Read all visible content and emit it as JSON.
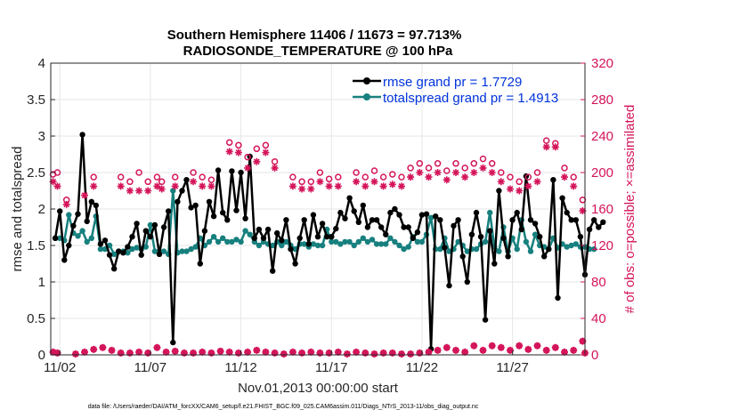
{
  "chart_data": {
    "type": "line",
    "title_line1": "Southern Hemisphere 11406 / 11673 = 97.713%",
    "title_line2": "RADIOSONDE_TEMPERATURE @ 100 hPa",
    "xlabel": "Nov.01,2013 00:00:00 start",
    "ylabel_left": "rmse and totalspread",
    "ylabel_right": "# of obs: o=possible; ×=assimilated",
    "footnote": "data file: /Users/raeder/DAI/ATM_forcXX/CAM6_setup/f.e21.FHIST_BGC.f09_025.CAM6assim.011/Diags_NTrS_2013-11/obs_diag_output.nc",
    "x_range_days": [
      0.75,
      30.25
    ],
    "ylim_left": [
      0,
      4
    ],
    "yticks_left": [
      "0",
      "0.5",
      "1",
      "1.5",
      "2",
      "2.5",
      "3",
      "3.5",
      "4"
    ],
    "ylim_right": [
      0,
      320
    ],
    "yticks_right": [
      "0",
      "40",
      "80",
      "120",
      "160",
      "200",
      "240",
      "280",
      "320"
    ],
    "xticks": [
      {
        "day": 1.25,
        "label": "11/02"
      },
      {
        "day": 6.25,
        "label": "11/07"
      },
      {
        "day": 11.25,
        "label": "11/12"
      },
      {
        "day": 16.25,
        "label": "11/17"
      },
      {
        "day": 21.25,
        "label": "11/22"
      },
      {
        "day": 26.25,
        "label": "11/27"
      }
    ],
    "legend": [
      {
        "label": "rmse grand pr = 1.7729",
        "color": "#000000"
      },
      {
        "label": "totalspread grand pr = 1.4913",
        "color": "#17807E"
      }
    ],
    "colors": {
      "rmse": "#000000",
      "spread": "#17807E",
      "obs": "#D4145A",
      "text_blue": "#0033DD",
      "grid": "#E6E6E6"
    },
    "rmse": [
      1.6,
      1.97,
      1.3,
      1.5,
      1.77,
      1.93,
      3.02,
      1.83,
      2.1,
      2.05,
      1.52,
      1.57,
      1.37,
      1.18,
      1.42,
      1.4,
      1.48,
      1.62,
      1.8,
      1.37,
      1.7,
      1.62,
      1.78,
      1.38,
      1.75,
      1.97,
      0.17,
      2.1,
      2.25,
      2.4,
      2.02,
      2.05,
      1.25,
      1.7,
      2.1,
      1.9,
      2.53,
      1.95,
      1.85,
      2.52,
      1.98,
      2.5,
      1.87,
      2.72,
      1.6,
      1.72,
      1.6,
      1.72,
      1.15,
      1.67,
      1.57,
      1.85,
      1.45,
      1.25,
      1.6,
      1.85,
      1.52,
      1.92,
      1.62,
      1.8,
      1.62,
      1.62,
      1.73,
      1.95,
      1.87,
      2.15,
      1.97,
      1.82,
      2.05,
      1.75,
      1.85,
      1.85,
      1.75,
      1.65,
      1.95,
      2.0,
      1.92,
      1.75,
      1.75,
      1.6,
      1.68,
      1.92,
      1.93,
      0.08,
      1.9,
      1.85,
      1.47,
      0.95,
      1.77,
      1.85,
      1.35,
      1.0,
      1.65,
      1.95,
      1.62,
      0.48,
      1.7,
      1.25,
      2.25,
      1.6,
      1.35,
      1.85,
      1.95,
      1.72,
      2.45,
      1.85,
      1.8,
      1.62,
      1.35,
      1.45,
      2.4,
      0.78,
      2.15,
      1.95,
      1.85,
      1.85,
      1.62,
      1.1,
      1.72,
      1.85,
      1.75,
      1.82
    ],
    "spread": [
      1.6,
      1.6,
      1.57,
      1.92,
      1.67,
      1.63,
      1.7,
      1.55,
      1.6,
      1.9,
      1.45,
      1.45,
      1.5,
      1.38,
      1.42,
      1.42,
      1.4,
      1.45,
      1.47,
      1.45,
      1.48,
      1.78,
      1.42,
      1.42,
      1.42,
      1.38,
      2.25,
      1.4,
      1.42,
      1.42,
      1.45,
      1.48,
      1.6,
      1.5,
      1.55,
      1.62,
      1.55,
      1.6,
      1.55,
      1.55,
      1.58,
      1.55,
      1.7,
      1.65,
      1.55,
      1.5,
      1.55,
      1.52,
      1.5,
      1.55,
      1.5,
      1.55,
      1.5,
      1.45,
      1.52,
      1.52,
      1.48,
      1.52,
      1.5,
      1.5,
      1.72,
      1.55,
      1.55,
      1.52,
      1.55,
      1.55,
      1.5,
      1.55,
      1.6,
      1.55,
      1.58,
      1.52,
      1.52,
      1.52,
      1.6,
      1.55,
      1.5,
      1.45,
      1.48,
      1.62,
      1.55,
      1.55,
      1.65,
      1.88,
      1.45,
      1.45,
      1.6,
      1.42,
      1.45,
      1.55,
      1.5,
      1.42,
      1.45,
      1.45,
      1.52,
      1.55,
      1.95,
      1.48,
      1.42,
      1.75,
      1.42,
      1.6,
      1.45,
      1.85,
      1.55,
      1.42,
      1.65,
      1.5,
      1.48,
      1.45,
      1.6,
      1.47,
      1.52,
      1.48,
      1.5,
      1.52,
      1.48,
      1.48,
      1.45,
      1.45
    ],
    "obs_possible": [
      [
        0.88,
        198
      ],
      [
        1.12,
        200
      ],
      [
        1.62,
        170
      ],
      [
        3.12,
        195
      ],
      [
        4.62,
        195
      ],
      [
        5.12,
        190
      ],
      [
        5.62,
        200
      ],
      [
        6.12,
        190
      ],
      [
        6.62,
        195
      ],
      [
        6.88,
        190
      ],
      [
        7.62,
        195
      ],
      [
        8.62,
        200
      ],
      [
        9.12,
        195
      ],
      [
        9.62,
        192
      ],
      [
        10.62,
        233
      ],
      [
        11.12,
        230
      ],
      [
        11.62,
        217
      ],
      [
        12.12,
        226
      ],
      [
        12.62,
        230
      ],
      [
        13.12,
        212
      ],
      [
        14.12,
        195
      ],
      [
        14.62,
        190
      ],
      [
        15.12,
        190
      ],
      [
        15.62,
        200
      ],
      [
        16.12,
        193
      ],
      [
        16.62,
        195
      ],
      [
        17.62,
        200
      ],
      [
        18.12,
        195
      ],
      [
        18.62,
        202
      ],
      [
        19.12,
        195
      ],
      [
        19.62,
        198
      ],
      [
        20.12,
        195
      ],
      [
        20.62,
        205
      ],
      [
        21.12,
        210
      ],
      [
        21.62,
        205
      ],
      [
        22.12,
        210
      ],
      [
        22.62,
        202
      ],
      [
        23.12,
        210
      ],
      [
        23.62,
        205
      ],
      [
        24.12,
        210
      ],
      [
        24.62,
        215
      ],
      [
        25.12,
        210
      ],
      [
        25.62,
        200
      ],
      [
        26.12,
        195
      ],
      [
        26.62,
        190
      ],
      [
        27.12,
        195
      ],
      [
        27.62,
        200
      ],
      [
        28.12,
        235
      ],
      [
        28.62,
        232
      ],
      [
        29.12,
        205
      ],
      [
        29.62,
        195
      ],
      [
        30.12,
        170
      ]
    ],
    "obs_assimilated": [
      [
        0.88,
        190
      ],
      [
        1.12,
        185
      ],
      [
        1.62,
        165
      ],
      [
        2.62,
        175
      ],
      [
        3.12,
        185
      ],
      [
        4.62,
        185
      ],
      [
        5.12,
        180
      ],
      [
        5.62,
        180
      ],
      [
        6.12,
        180
      ],
      [
        6.62,
        185
      ],
      [
        6.88,
        182
      ],
      [
        7.62,
        185
      ],
      [
        8.62,
        190
      ],
      [
        9.12,
        185
      ],
      [
        9.62,
        185
      ],
      [
        10.62,
        223
      ],
      [
        11.12,
        222
      ],
      [
        11.62,
        205
      ],
      [
        12.12,
        212
      ],
      [
        12.62,
        222
      ],
      [
        13.12,
        205
      ],
      [
        14.12,
        185
      ],
      [
        14.62,
        182
      ],
      [
        15.12,
        182
      ],
      [
        15.62,
        190
      ],
      [
        16.12,
        185
      ],
      [
        16.62,
        185
      ],
      [
        17.62,
        190
      ],
      [
        18.12,
        185
      ],
      [
        18.62,
        190
      ],
      [
        19.12,
        185
      ],
      [
        19.62,
        187
      ],
      [
        20.12,
        185
      ],
      [
        20.62,
        195
      ],
      [
        21.12,
        200
      ],
      [
        21.62,
        195
      ],
      [
        22.12,
        200
      ],
      [
        22.62,
        192
      ],
      [
        23.12,
        200
      ],
      [
        23.62,
        195
      ],
      [
        24.12,
        200
      ],
      [
        24.62,
        205
      ],
      [
        25.12,
        200
      ],
      [
        25.62,
        190
      ],
      [
        26.12,
        182
      ],
      [
        26.62,
        180
      ],
      [
        27.12,
        185
      ],
      [
        27.62,
        190
      ],
      [
        28.12,
        228
      ],
      [
        28.62,
        228
      ],
      [
        29.12,
        195
      ],
      [
        29.62,
        185
      ],
      [
        30.12,
        158
      ]
    ],
    "obs_low": [
      [
        0.88,
        3
      ],
      [
        1.12,
        2
      ],
      [
        2.12,
        1
      ],
      [
        2.62,
        3
      ],
      [
        3.12,
        6
      ],
      [
        3.62,
        8
      ],
      [
        4.12,
        5
      ],
      [
        4.62,
        2
      ],
      [
        5.12,
        2
      ],
      [
        5.62,
        3
      ],
      [
        6.12,
        2
      ],
      [
        6.62,
        8
      ],
      [
        7.12,
        3
      ],
      [
        7.62,
        4
      ],
      [
        8.12,
        2
      ],
      [
        8.62,
        2
      ],
      [
        9.12,
        3
      ],
      [
        9.62,
        2
      ],
      [
        10.12,
        4
      ],
      [
        10.62,
        3
      ],
      [
        11.12,
        2
      ],
      [
        11.62,
        3
      ],
      [
        12.12,
        5
      ],
      [
        12.62,
        3
      ],
      [
        13.12,
        2
      ],
      [
        13.62,
        1
      ],
      [
        14.12,
        3
      ],
      [
        14.62,
        2
      ],
      [
        15.12,
        3
      ],
      [
        15.62,
        2
      ],
      [
        16.12,
        2
      ],
      [
        16.62,
        3
      ],
      [
        17.12,
        1
      ],
      [
        17.62,
        3
      ],
      [
        18.12,
        2
      ],
      [
        18.62,
        1
      ],
      [
        19.12,
        2
      ],
      [
        19.62,
        2
      ],
      [
        20.12,
        1
      ],
      [
        20.62,
        1
      ],
      [
        21.12,
        2
      ],
      [
        21.62,
        3
      ],
      [
        22.12,
        5
      ],
      [
        22.62,
        8
      ],
      [
        23.12,
        5
      ],
      [
        23.62,
        3
      ],
      [
        24.12,
        10
      ],
      [
        24.62,
        5
      ],
      [
        25.12,
        10
      ],
      [
        25.62,
        8
      ],
      [
        26.12,
        5
      ],
      [
        26.62,
        10
      ],
      [
        27.12,
        6
      ],
      [
        27.62,
        10
      ],
      [
        28.12,
        5
      ],
      [
        28.62,
        8
      ],
      [
        29.12,
        3
      ],
      [
        29.62,
        5
      ],
      [
        30.12,
        15
      ],
      [
        30.25,
        2
      ]
    ]
  }
}
